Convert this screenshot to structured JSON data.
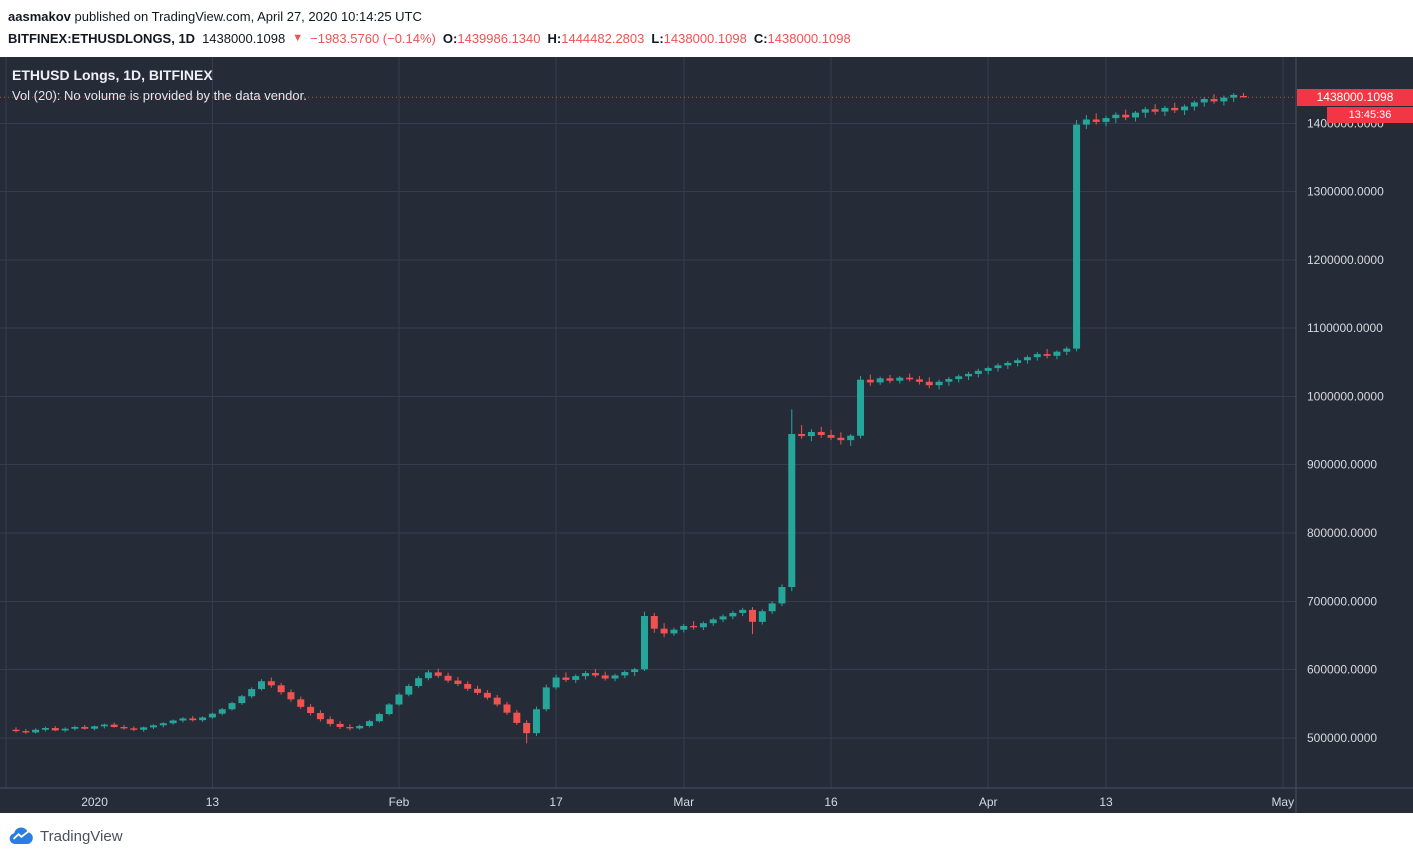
{
  "header": {
    "author": "aasmakov",
    "published_note": " published on TradingView.com, April 27, 2020 10:14:25 UTC",
    "symbol": "BITFINEX:ETHUSDLONGS, 1D",
    "last_price": "1438000.1098",
    "direction_icon": "▼",
    "change": "−1983.5760 (−0.14%)",
    "o_label": "O:",
    "o_value": "1439986.1340",
    "h_label": "H:",
    "h_value": "1444482.2803",
    "l_label": "L:",
    "l_value": "1438000.1098",
    "c_label": "C:",
    "c_value": "1438000.1098"
  },
  "legend": {
    "title": "ETHUSD Longs, 1D, BITFINEX",
    "volume_note": "Vol (20): No volume is provided by the data vendor."
  },
  "price_scale": {
    "last_price_label": "1438000.1098",
    "countdown": "13:45:36"
  },
  "footer": {
    "brand": "TradingView"
  },
  "chart_data": {
    "type": "candlestick",
    "title": "ETHUSD Longs",
    "symbol": "BITFINEX:ETHUSDLONGS",
    "interval": "1D",
    "exchange": "BITFINEX",
    "ylabel": "",
    "ylim": [
      426700,
      1497000
    ],
    "grid": true,
    "last_price": 1438000.1098,
    "theme": {
      "background": "#262b38",
      "grid": "#363d4e",
      "axis_line": "#4a5060",
      "axis_text": "#d6d9e0",
      "up": "#26a69a",
      "down": "#ef5350",
      "accent": "#f23645"
    },
    "price_gridlines": [
      500000,
      600000,
      700000,
      800000,
      900000,
      1000000,
      1100000,
      1200000,
      1300000,
      1400000
    ],
    "price_ticks": [
      {
        "label": "1400000.0000",
        "value": 1400000
      },
      {
        "label": "1300000.0000",
        "value": 1300000
      },
      {
        "label": "1200000.0000",
        "value": 1200000
      },
      {
        "label": "1100000.0000",
        "value": 1100000
      },
      {
        "label": "1000000.0000",
        "value": 1000000
      },
      {
        "label": "900000.0000",
        "value": 900000
      },
      {
        "label": "800000.0000",
        "value": 800000
      },
      {
        "label": "700000.0000",
        "value": 700000
      },
      {
        "label": "600000.0000",
        "value": 600000
      },
      {
        "label": "500000.0000",
        "value": 500000
      }
    ],
    "time_gridlines": [
      "2019-12-23",
      "2020-01-13",
      "2020-02-01",
      "2020-02-17",
      "2020-03-01",
      "2020-03-16",
      "2020-04-01",
      "2020-04-13",
      "2020-05-01"
    ],
    "time_labels": [
      {
        "text": "2020",
        "date": "2020-01-01"
      },
      {
        "text": "13",
        "date": "2020-01-13"
      },
      {
        "text": "Feb",
        "date": "2020-02-01"
      },
      {
        "text": "17",
        "date": "2020-02-17"
      },
      {
        "text": "Mar",
        "date": "2020-03-01"
      },
      {
        "text": "16",
        "date": "2020-03-16"
      },
      {
        "text": "Apr",
        "date": "2020-04-01"
      },
      {
        "text": "13",
        "date": "2020-04-13"
      },
      {
        "text": "May",
        "date": "2020-05-01"
      }
    ],
    "candles": [
      [
        "2019-12-24",
        512000,
        515500,
        508000,
        510000
      ],
      [
        "2019-12-25",
        510000,
        513000,
        506000,
        508000
      ],
      [
        "2019-12-26",
        508000,
        514000,
        506500,
        512000
      ],
      [
        "2019-12-27",
        512000,
        516500,
        509500,
        514500
      ],
      [
        "2019-12-28",
        514500,
        517500,
        510000,
        511000
      ],
      [
        "2019-12-29",
        511000,
        515500,
        508500,
        513500
      ],
      [
        "2019-12-30",
        513500,
        518000,
        511000,
        516000
      ],
      [
        "2019-12-31",
        516000,
        519000,
        512000,
        513500
      ],
      [
        "2020-01-01",
        513500,
        518000,
        511000,
        517000
      ],
      [
        "2020-01-02",
        517000,
        521000,
        514000,
        519500
      ],
      [
        "2020-01-03",
        519500,
        522500,
        515000,
        516000
      ],
      [
        "2020-01-04",
        516000,
        519000,
        512000,
        514000
      ],
      [
        "2020-01-05",
        514000,
        517000,
        510000,
        512000
      ],
      [
        "2020-01-06",
        512000,
        516500,
        509000,
        515500
      ],
      [
        "2020-01-07",
        515500,
        520000,
        513000,
        518500
      ],
      [
        "2020-01-08",
        518500,
        523000,
        515500,
        521500
      ],
      [
        "2020-01-09",
        521500,
        527000,
        519500,
        525500
      ],
      [
        "2020-01-10",
        525500,
        530500,
        522500,
        528500
      ],
      [
        "2020-01-11",
        528500,
        532000,
        524000,
        526000
      ],
      [
        "2020-01-12",
        526000,
        531500,
        523500,
        530000
      ],
      [
        "2020-01-13",
        530000,
        537000,
        528000,
        535500
      ],
      [
        "2020-01-14",
        535500,
        544000,
        533000,
        542000
      ],
      [
        "2020-01-15",
        542000,
        553000,
        540000,
        551000
      ],
      [
        "2020-01-16",
        551000,
        563000,
        548500,
        561000
      ],
      [
        "2020-01-17",
        561000,
        574000,
        558000,
        571500
      ],
      [
        "2020-01-18",
        571500,
        586000,
        569500,
        583000
      ],
      [
        "2020-01-19",
        583000,
        588500,
        573500,
        577000
      ],
      [
        "2020-01-20",
        577000,
        580500,
        563500,
        567000
      ],
      [
        "2020-01-21",
        567000,
        571000,
        553000,
        556500
      ],
      [
        "2020-01-22",
        556500,
        560500,
        542500,
        545500
      ],
      [
        "2020-01-23",
        545500,
        549500,
        533000,
        536500
      ],
      [
        "2020-01-24",
        536500,
        540500,
        524000,
        527500
      ],
      [
        "2020-01-25",
        527500,
        531500,
        517000,
        520500
      ],
      [
        "2020-01-26",
        520500,
        524500,
        513000,
        516000
      ],
      [
        "2020-01-27",
        516000,
        520000,
        511000,
        514000
      ],
      [
        "2020-01-28",
        514000,
        519500,
        512000,
        517500
      ],
      [
        "2020-01-29",
        517500,
        526500,
        515500,
        524500
      ],
      [
        "2020-01-30",
        524500,
        537000,
        522500,
        535000
      ],
      [
        "2020-01-31",
        535000,
        551000,
        533000,
        549000
      ],
      [
        "2020-02-01",
        549000,
        566000,
        547000,
        563500
      ],
      [
        "2020-02-02",
        563500,
        579000,
        561000,
        576000
      ],
      [
        "2020-02-03",
        576000,
        590500,
        573500,
        587500
      ],
      [
        "2020-02-04",
        587500,
        599500,
        584500,
        596000
      ],
      [
        "2020-02-05",
        596000,
        601500,
        588000,
        591000
      ],
      [
        "2020-02-06",
        591000,
        595500,
        581000,
        584000
      ],
      [
        "2020-02-07",
        584000,
        589000,
        576000,
        579000
      ],
      [
        "2020-02-08",
        579000,
        583000,
        569000,
        572000
      ],
      [
        "2020-02-09",
        572000,
        576500,
        563000,
        566000
      ],
      [
        "2020-02-10",
        566000,
        570000,
        556000,
        559000
      ],
      [
        "2020-02-11",
        559000,
        563000,
        546000,
        549000
      ],
      [
        "2020-02-12",
        549000,
        553000,
        534000,
        537000
      ],
      [
        "2020-02-13",
        537000,
        541000,
        519000,
        522000
      ],
      [
        "2020-02-14",
        522000,
        526000,
        492000,
        507000
      ],
      [
        "2020-02-15",
        507000,
        546000,
        503000,
        542000
      ],
      [
        "2020-02-16",
        542000,
        578000,
        539000,
        574000
      ],
      [
        "2020-02-17",
        574000,
        592500,
        571000,
        588500
      ],
      [
        "2020-02-18",
        588500,
        596000,
        582000,
        585000
      ],
      [
        "2020-02-19",
        585000,
        593000,
        580500,
        590500
      ],
      [
        "2020-02-20",
        590500,
        598000,
        585500,
        595000
      ],
      [
        "2020-02-21",
        595000,
        601000,
        588500,
        591500
      ],
      [
        "2020-02-22",
        591500,
        597000,
        584000,
        587000
      ],
      [
        "2020-02-23",
        587000,
        594000,
        583000,
        591500
      ],
      [
        "2020-02-24",
        591500,
        599000,
        587500,
        596500
      ],
      [
        "2020-02-25",
        596500,
        602500,
        590500,
        600500
      ],
      [
        "2020-02-26",
        600500,
        685000,
        598000,
        678500
      ],
      [
        "2020-02-27",
        678500,
        683000,
        654000,
        660000
      ],
      [
        "2020-02-28",
        660000,
        668000,
        647500,
        653000
      ],
      [
        "2020-02-29",
        653000,
        661500,
        649500,
        658500
      ],
      [
        "2020-03-01",
        658500,
        667000,
        654500,
        664000
      ],
      [
        "2020-03-02",
        664000,
        671000,
        658500,
        662000
      ],
      [
        "2020-03-03",
        662000,
        670500,
        658000,
        668000
      ],
      [
        "2020-03-04",
        668000,
        676000,
        664000,
        673500
      ],
      [
        "2020-03-05",
        673500,
        681000,
        669500,
        678000
      ],
      [
        "2020-03-06",
        678000,
        686000,
        674000,
        683000
      ],
      [
        "2020-03-07",
        683000,
        690500,
        678500,
        687500
      ],
      [
        "2020-03-08",
        687500,
        691500,
        652000,
        670000
      ],
      [
        "2020-03-09",
        670000,
        688500,
        666000,
        685500
      ],
      [
        "2020-03-10",
        685500,
        700000,
        681500,
        697000
      ],
      [
        "2020-03-11",
        697000,
        725000,
        693000,
        721000
      ],
      [
        "2020-03-12",
        721000,
        981000,
        715000,
        945000
      ],
      [
        "2020-03-13",
        945000,
        958000,
        938000,
        942000
      ],
      [
        "2020-03-14",
        942000,
        952000,
        934500,
        948000
      ],
      [
        "2020-03-15",
        948000,
        955500,
        939500,
        943500
      ],
      [
        "2020-03-16",
        943500,
        951000,
        936000,
        939500
      ],
      [
        "2020-03-17",
        939500,
        947500,
        929500,
        936000
      ],
      [
        "2020-03-18",
        936000,
        945000,
        927500,
        942500
      ],
      [
        "2020-03-19",
        942500,
        1030000,
        938500,
        1024500
      ],
      [
        "2020-03-20",
        1024500,
        1032000,
        1015500,
        1020500
      ],
      [
        "2020-03-21",
        1020500,
        1029000,
        1017000,
        1026500
      ],
      [
        "2020-03-22",
        1026500,
        1031500,
        1019500,
        1023000
      ],
      [
        "2020-03-23",
        1023000,
        1030000,
        1019000,
        1027500
      ],
      [
        "2020-03-24",
        1027500,
        1033500,
        1022000,
        1025000
      ],
      [
        "2020-03-25",
        1025000,
        1030000,
        1017500,
        1021500
      ],
      [
        "2020-03-26",
        1021500,
        1028000,
        1012000,
        1016500
      ],
      [
        "2020-03-27",
        1016500,
        1024500,
        1010500,
        1021500
      ],
      [
        "2020-03-28",
        1021500,
        1028500,
        1015500,
        1025500
      ],
      [
        "2020-03-29",
        1025500,
        1032000,
        1020500,
        1029500
      ],
      [
        "2020-03-30",
        1029500,
        1036000,
        1024000,
        1033000
      ],
      [
        "2020-03-31",
        1033000,
        1040500,
        1028000,
        1037500
      ],
      [
        "2020-04-01",
        1037500,
        1044000,
        1032500,
        1041500
      ],
      [
        "2020-04-02",
        1041500,
        1048500,
        1036500,
        1045500
      ],
      [
        "2020-04-03",
        1045500,
        1052000,
        1040000,
        1049000
      ],
      [
        "2020-04-04",
        1049000,
        1056000,
        1044000,
        1053000
      ],
      [
        "2020-04-05",
        1053000,
        1060000,
        1048000,
        1057500
      ],
      [
        "2020-04-06",
        1057500,
        1065000,
        1052500,
        1062000
      ],
      [
        "2020-04-07",
        1062000,
        1069500,
        1055500,
        1059500
      ],
      [
        "2020-04-08",
        1059500,
        1067500,
        1054500,
        1065500
      ],
      [
        "2020-04-09",
        1065500,
        1073000,
        1060500,
        1070000
      ],
      [
        "2020-04-10",
        1070000,
        1405000,
        1066000,
        1398000
      ],
      [
        "2020-04-11",
        1398000,
        1412000,
        1391500,
        1405500
      ],
      [
        "2020-04-12",
        1405500,
        1414500,
        1398000,
        1402000
      ],
      [
        "2020-04-13",
        1402000,
        1410500,
        1395500,
        1407500
      ],
      [
        "2020-04-14",
        1407500,
        1416000,
        1400500,
        1412500
      ],
      [
        "2020-04-15",
        1412500,
        1420000,
        1404500,
        1408500
      ],
      [
        "2020-04-16",
        1408500,
        1418000,
        1402500,
        1415500
      ],
      [
        "2020-04-17",
        1415500,
        1424000,
        1408000,
        1420500
      ],
      [
        "2020-04-18",
        1420500,
        1428000,
        1412500,
        1417000
      ],
      [
        "2020-04-19",
        1417000,
        1425500,
        1410500,
        1422500
      ],
      [
        "2020-04-20",
        1422500,
        1430000,
        1415000,
        1419000
      ],
      [
        "2020-04-21",
        1419000,
        1427500,
        1412000,
        1424500
      ],
      [
        "2020-04-22",
        1424500,
        1433000,
        1418500,
        1430500
      ],
      [
        "2020-04-23",
        1430500,
        1438500,
        1424500,
        1435500
      ],
      [
        "2020-04-24",
        1435500,
        1442500,
        1428500,
        1432000
      ],
      [
        "2020-04-25",
        1432000,
        1440500,
        1426000,
        1437500
      ],
      [
        "2020-04-26",
        1437500,
        1444000,
        1431000,
        1441500
      ],
      [
        "2020-04-27",
        1439986.134,
        1444482.2803,
        1438000.1098,
        1438000.1098
      ]
    ]
  }
}
